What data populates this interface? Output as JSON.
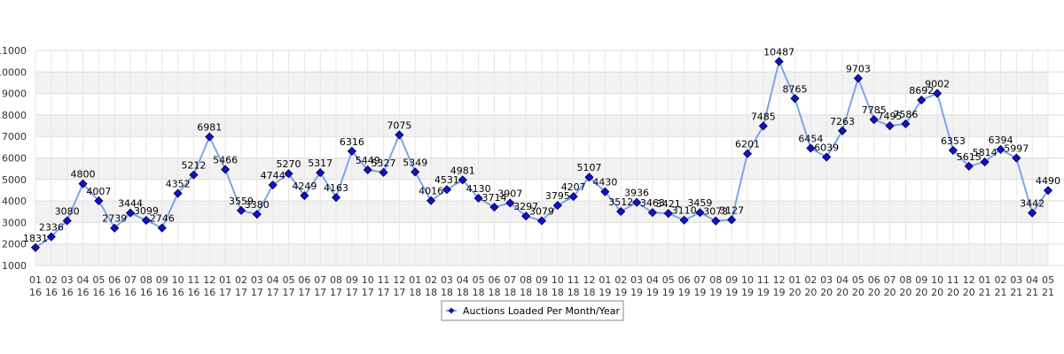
{
  "chart_data": {
    "type": "line",
    "title": "",
    "xlabel": "",
    "ylabel": "",
    "ylim": [
      1000,
      11000
    ],
    "yticks": [
      1000,
      2000,
      3000,
      4000,
      5000,
      6000,
      7000,
      8000,
      9000,
      10000,
      11000
    ],
    "grid": true,
    "legend_position": "bottom-center",
    "categories": [
      [
        "01",
        "16"
      ],
      [
        "02",
        "16"
      ],
      [
        "03",
        "16"
      ],
      [
        "04",
        "16"
      ],
      [
        "05",
        "16"
      ],
      [
        "06",
        "16"
      ],
      [
        "07",
        "16"
      ],
      [
        "08",
        "16"
      ],
      [
        "09",
        "16"
      ],
      [
        "10",
        "16"
      ],
      [
        "11",
        "16"
      ],
      [
        "12",
        "16"
      ],
      [
        "01",
        "17"
      ],
      [
        "02",
        "17"
      ],
      [
        "03",
        "17"
      ],
      [
        "04",
        "17"
      ],
      [
        "05",
        "17"
      ],
      [
        "06",
        "17"
      ],
      [
        "07",
        "17"
      ],
      [
        "08",
        "17"
      ],
      [
        "09",
        "17"
      ],
      [
        "10",
        "17"
      ],
      [
        "11",
        "17"
      ],
      [
        "12",
        "17"
      ],
      [
        "01",
        "18"
      ],
      [
        "02",
        "18"
      ],
      [
        "03",
        "18"
      ],
      [
        "04",
        "18"
      ],
      [
        "05",
        "18"
      ],
      [
        "06",
        "18"
      ],
      [
        "07",
        "18"
      ],
      [
        "08",
        "18"
      ],
      [
        "09",
        "18"
      ],
      [
        "10",
        "18"
      ],
      [
        "11",
        "18"
      ],
      [
        "12",
        "18"
      ],
      [
        "01",
        "19"
      ],
      [
        "02",
        "19"
      ],
      [
        "03",
        "19"
      ],
      [
        "04",
        "19"
      ],
      [
        "05",
        "19"
      ],
      [
        "06",
        "19"
      ],
      [
        "07",
        "19"
      ],
      [
        "08",
        "19"
      ],
      [
        "09",
        "19"
      ],
      [
        "10",
        "19"
      ],
      [
        "11",
        "19"
      ],
      [
        "12",
        "19"
      ],
      [
        "01",
        "20"
      ],
      [
        "02",
        "20"
      ],
      [
        "03",
        "20"
      ],
      [
        "04",
        "20"
      ],
      [
        "05",
        "20"
      ],
      [
        "06",
        "20"
      ],
      [
        "07",
        "20"
      ],
      [
        "08",
        "20"
      ],
      [
        "09",
        "20"
      ],
      [
        "10",
        "20"
      ],
      [
        "11",
        "20"
      ],
      [
        "12",
        "20"
      ],
      [
        "01",
        "21"
      ],
      [
        "02",
        "21"
      ],
      [
        "03",
        "21"
      ],
      [
        "04",
        "21"
      ],
      [
        "05",
        "21"
      ]
    ],
    "series": [
      {
        "name": "Auctions Loaded Per Month/Year",
        "line_color": "#7aa6ea",
        "marker_color": "#1010d0",
        "values": [
          1831,
          2336,
          3080,
          4800,
          4007,
          2739,
          3444,
          3099,
          2746,
          4352,
          5212,
          6981,
          5466,
          3559,
          3380,
          4744,
          5270,
          4249,
          5317,
          4163,
          6316,
          5449,
          5327,
          7075,
          5349,
          4016,
          4531,
          4981,
          4130,
          3714,
          3907,
          3297,
          3079,
          3795,
          4207,
          5107,
          4430,
          3512,
          3936,
          3463,
          3421,
          3110,
          3459,
          3073,
          3127,
          6201,
          7485,
          10487,
          8765,
          6454,
          6039,
          7263,
          9703,
          7785,
          7495,
          7586,
          8692,
          9002,
          6353,
          5615,
          5814,
          6394,
          5997,
          3442,
          4490
        ]
      }
    ]
  }
}
